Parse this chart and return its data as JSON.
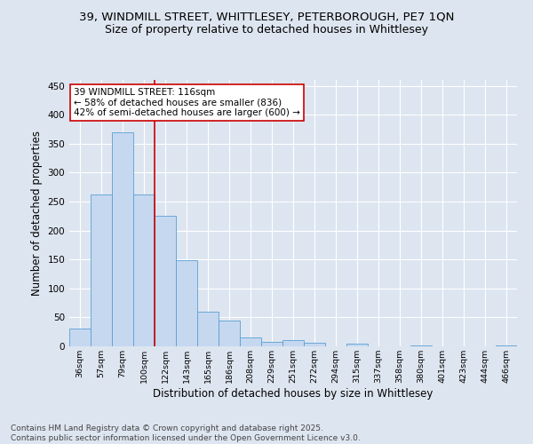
{
  "title1": "39, WINDMILL STREET, WHITTLESEY, PETERBOROUGH, PE7 1QN",
  "title2": "Size of property relative to detached houses in Whittlesey",
  "xlabel": "Distribution of detached houses by size in Whittlesey",
  "ylabel": "Number of detached properties",
  "categories": [
    "36sqm",
    "57sqm",
    "79sqm",
    "100sqm",
    "122sqm",
    "143sqm",
    "165sqm",
    "186sqm",
    "208sqm",
    "229sqm",
    "251sqm",
    "272sqm",
    "294sqm",
    "315sqm",
    "337sqm",
    "358sqm",
    "380sqm",
    "401sqm",
    "423sqm",
    "444sqm",
    "466sqm"
  ],
  "values": [
    30,
    262,
    370,
    262,
    225,
    148,
    60,
    45,
    15,
    8,
    10,
    6,
    0,
    5,
    0,
    0,
    2,
    0,
    0,
    0,
    2
  ],
  "bar_color": "#c5d8f0",
  "bar_edge_color": "#5a9fd4",
  "vline_x": 3.5,
  "vline_color": "#cc0000",
  "annotation_text": "39 WINDMILL STREET: 116sqm\n← 58% of detached houses are smaller (836)\n42% of semi-detached houses are larger (600) →",
  "annotation_box_color": "#ffffff",
  "annotation_box_edge": "#cc0000",
  "ylim": [
    0,
    460
  ],
  "yticks": [
    0,
    50,
    100,
    150,
    200,
    250,
    300,
    350,
    400,
    450
  ],
  "bg_color": "#dde5f0",
  "grid_color": "#ffffff",
  "footer": "Contains HM Land Registry data © Crown copyright and database right 2025.\nContains public sector information licensed under the Open Government Licence v3.0.",
  "title_fontsize": 9.5,
  "subtitle_fontsize": 9,
  "xlabel_fontsize": 8.5,
  "ylabel_fontsize": 8.5,
  "ann_fontsize": 7.5,
  "footer_fontsize": 6.5
}
